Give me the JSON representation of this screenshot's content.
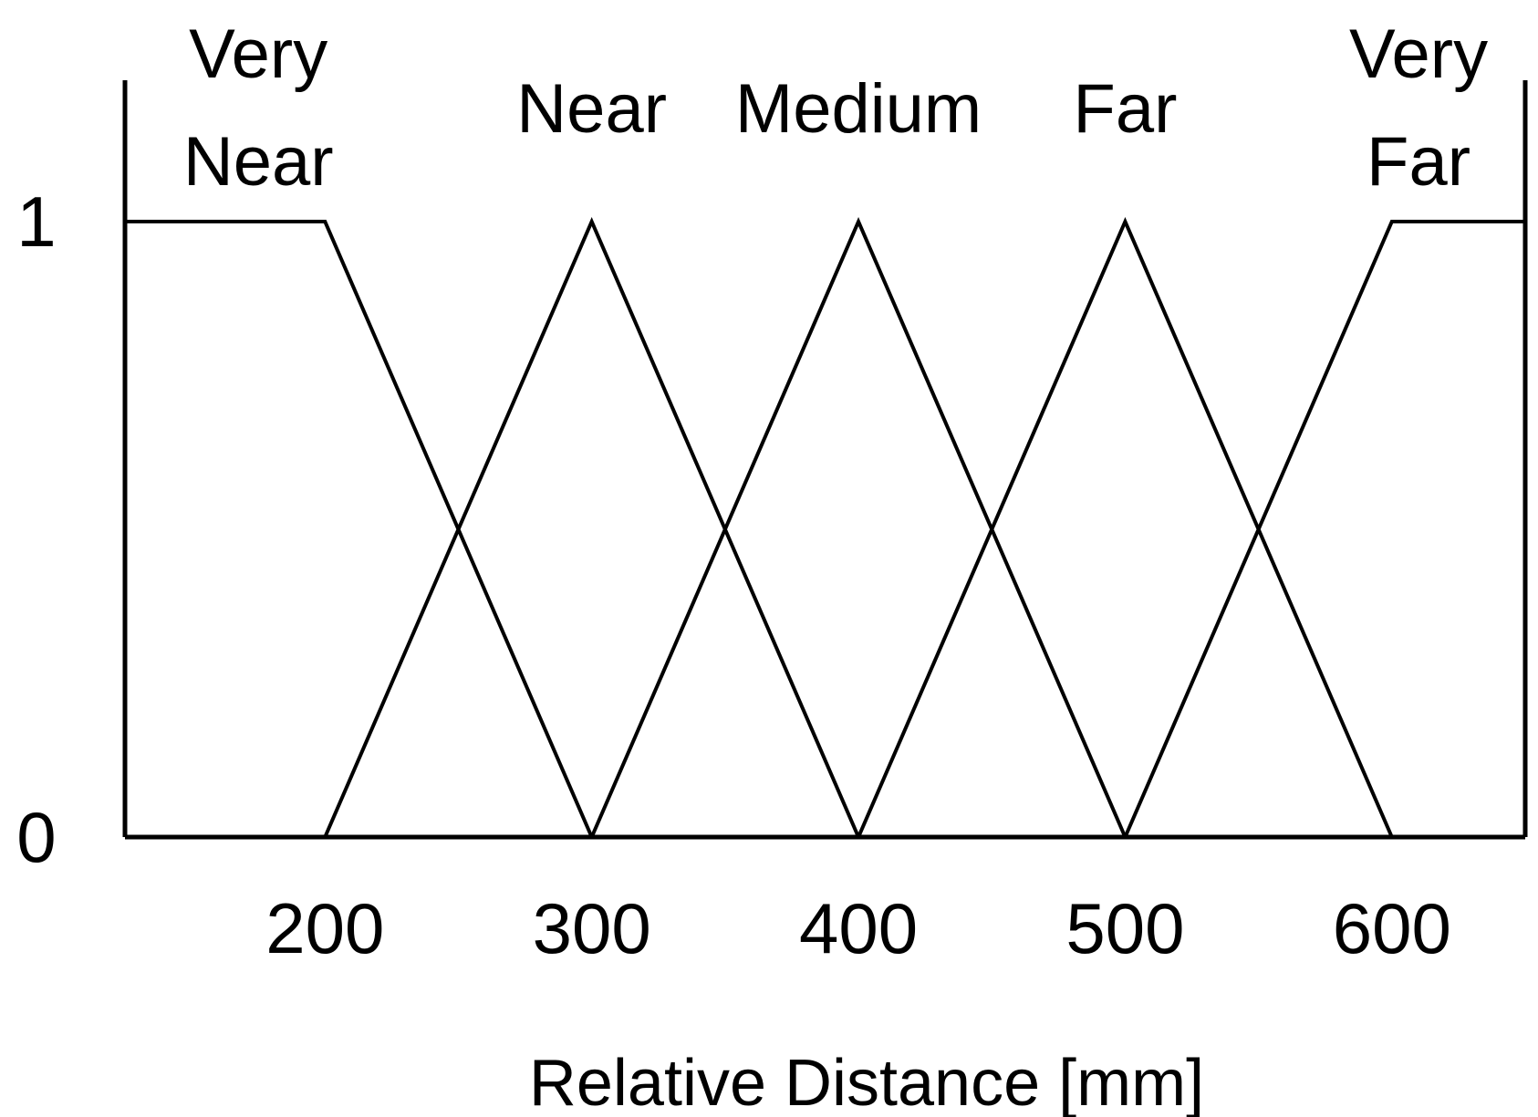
{
  "chart_data": {
    "type": "line",
    "xlabel": "Relative Distance [mm]",
    "ylabel": "",
    "xlim": [
      125,
      650
    ],
    "ylim": [
      0,
      1
    ],
    "x_ticks": [
      "200",
      "300",
      "400",
      "500",
      "600"
    ],
    "x_tick_values": [
      200,
      300,
      400,
      500,
      600
    ],
    "y_ticks": [
      "0",
      "1"
    ],
    "y_tick_values": [
      0,
      1
    ],
    "grid": false,
    "legend": "none",
    "series": [
      {
        "name": "Very Near",
        "label_lines": [
          "Very",
          "Near"
        ],
        "label_x": 175,
        "points": [
          [
            125,
            1
          ],
          [
            200,
            1
          ],
          [
            300,
            0
          ]
        ]
      },
      {
        "name": "Near",
        "label_lines": [
          "Near"
        ],
        "label_x": 300,
        "points": [
          [
            200,
            0
          ],
          [
            300,
            1
          ],
          [
            400,
            0
          ]
        ]
      },
      {
        "name": "Medium",
        "label_lines": [
          "Medium"
        ],
        "label_x": 400,
        "points": [
          [
            300,
            0
          ],
          [
            400,
            1
          ],
          [
            500,
            0
          ]
        ]
      },
      {
        "name": "Far",
        "label_lines": [
          "Far"
        ],
        "label_x": 500,
        "points": [
          [
            400,
            0
          ],
          [
            500,
            1
          ],
          [
            600,
            0
          ]
        ]
      },
      {
        "name": "Very Far",
        "label_lines": [
          "Very",
          "Far"
        ],
        "label_x": 610,
        "points": [
          [
            500,
            0
          ],
          [
            600,
            1
          ],
          [
            650,
            1
          ]
        ]
      }
    ]
  }
}
